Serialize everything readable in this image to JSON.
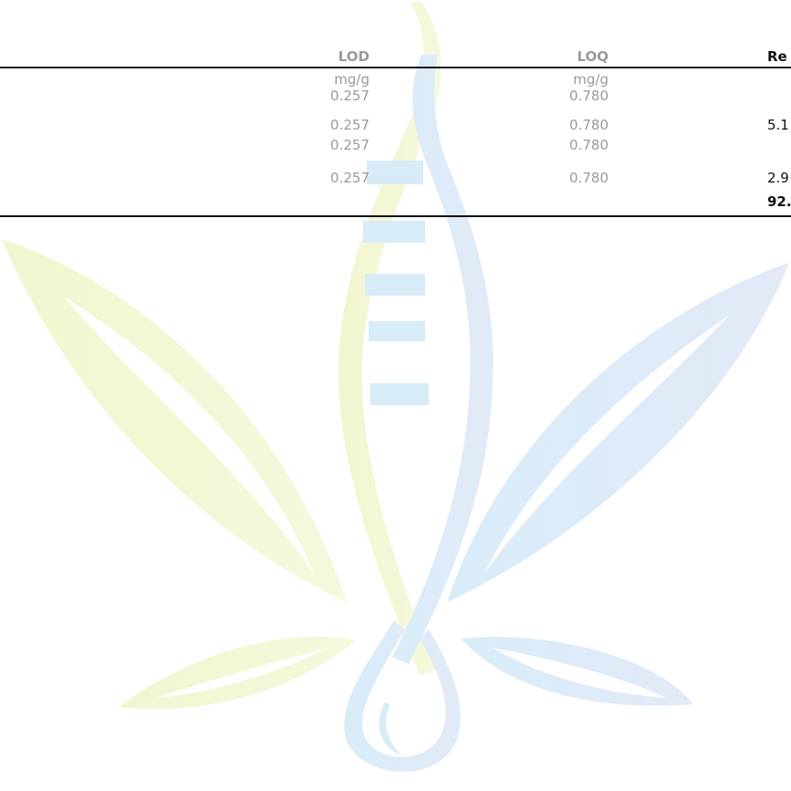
{
  "table": {
    "headers": {
      "lod": "LOD",
      "loq": "LOQ",
      "result": "Re"
    },
    "units": {
      "lod": "mg/g",
      "loq": "mg/g"
    },
    "rows": [
      {
        "lod": "0.257",
        "loq": "0.780",
        "result": ""
      },
      {
        "lod": "0.257",
        "loq": "0.780",
        "result": "5.1"
      },
      {
        "lod": "0.257",
        "loq": "0.780",
        "result": ""
      },
      {
        "lod": "0.257",
        "loq": "0.780",
        "result": "2.9"
      }
    ],
    "total": "92."
  },
  "colors": {
    "header_gray": "#9a9a9a",
    "value_gray": "#9a9a9a",
    "text_dark": "#111111",
    "watermark_yellow": "#f3f6d2",
    "watermark_blue": "#dcecf7"
  },
  "watermark_icon": "cannabis-leaf-droplet-logo"
}
